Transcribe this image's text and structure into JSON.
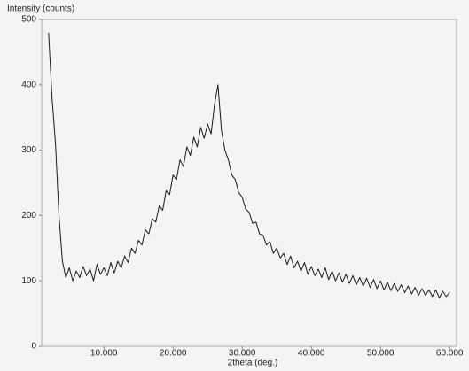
{
  "chart_data": {
    "type": "line",
    "y_label": "Intensity (counts)",
    "x_label": "2theta (deg.)",
    "xlim": [
      1,
      61
    ],
    "ylim": [
      0,
      500
    ],
    "xticks": [
      {
        "value": 10,
        "label": "10.000"
      },
      {
        "value": 20,
        "label": "20.000"
      },
      {
        "value": 30,
        "label": "30.000"
      },
      {
        "value": 40,
        "label": "40.000"
      },
      {
        "value": 50,
        "label": "50.000"
      },
      {
        "value": 60,
        "label": "60.000"
      }
    ],
    "yticks": [
      0,
      100,
      200,
      300,
      400,
      500
    ],
    "grid": false,
    "x": [
      2,
      2.5,
      3,
      3.5,
      4,
      4.5,
      5,
      5.5,
      6,
      6.5,
      7,
      7.5,
      8,
      8.5,
      9,
      9.5,
      10,
      10.5,
      11,
      11.5,
      12,
      12.5,
      13,
      13.5,
      14,
      14.5,
      15,
      15.5,
      16,
      16.5,
      17,
      17.5,
      18,
      18.5,
      19,
      19.5,
      20,
      20.5,
      21,
      21.5,
      22,
      22.5,
      23,
      23.5,
      24,
      24.5,
      25,
      25.5,
      26,
      26.5,
      27,
      27.5,
      28,
      28.5,
      29,
      29.5,
      30,
      30.5,
      31,
      31.5,
      32,
      32.5,
      33,
      33.5,
      34,
      34.5,
      35,
      35.5,
      36,
      36.5,
      37,
      37.5,
      38,
      38.5,
      39,
      39.5,
      40,
      40.5,
      41,
      41.5,
      42,
      42.5,
      43,
      43.5,
      44,
      44.5,
      45,
      45.5,
      46,
      46.5,
      47,
      47.5,
      48,
      48.5,
      49,
      49.5,
      50,
      50.5,
      51,
      51.5,
      52,
      52.5,
      53,
      53.5,
      54,
      54.5,
      55,
      55.5,
      56,
      56.5,
      57,
      57.5,
      58,
      58.5,
      59,
      59.5,
      60
    ],
    "series": [
      {
        "color": "#1a1a1a",
        "values": [
          480,
          380,
          310,
          200,
          130,
          105,
          120,
          100,
          115,
          105,
          122,
          108,
          118,
          100,
          125,
          110,
          120,
          108,
          128,
          112,
          130,
          120,
          138,
          128,
          150,
          142,
          162,
          155,
          178,
          172,
          195,
          190,
          215,
          208,
          238,
          232,
          262,
          255,
          285,
          275,
          305,
          292,
          320,
          305,
          335,
          318,
          340,
          325,
          370,
          400,
          330,
          300,
          285,
          262,
          255,
          235,
          228,
          210,
          205,
          188,
          190,
          172,
          170,
          155,
          160,
          142,
          150,
          135,
          142,
          125,
          138,
          120,
          130,
          115,
          128,
          110,
          122,
          108,
          118,
          105,
          120,
          102,
          115,
          100,
          112,
          98,
          110,
          96,
          108,
          94,
          105,
          92,
          104,
          90,
          102,
          88,
          100,
          86,
          98,
          85,
          96,
          84,
          94,
          82,
          92,
          80,
          90,
          78,
          88,
          78,
          86,
          76,
          86,
          74,
          84,
          76,
          82
        ]
      }
    ]
  }
}
